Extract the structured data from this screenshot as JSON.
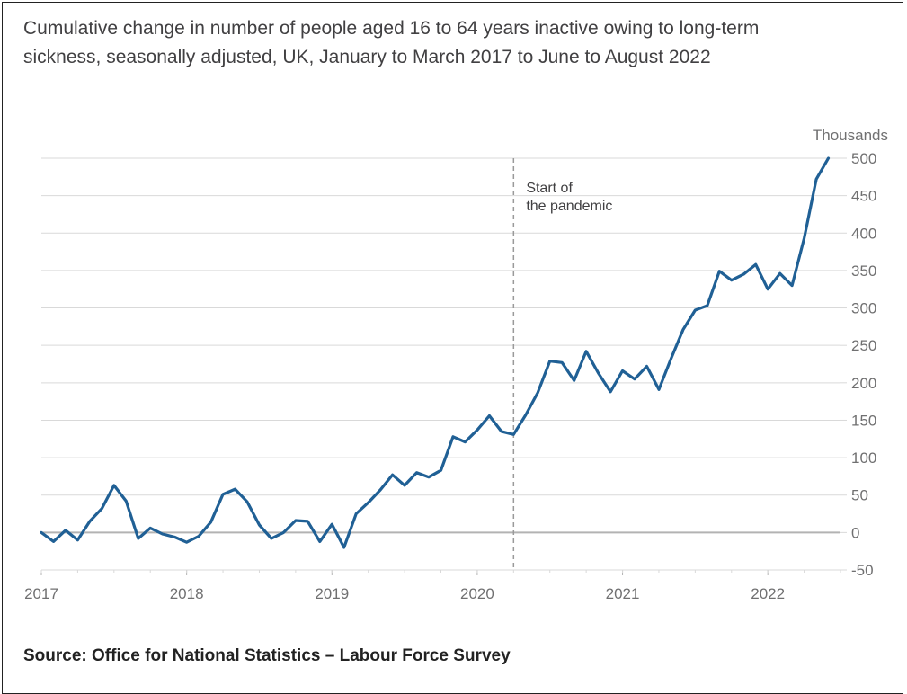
{
  "title": "Cumulative change in number of people aged 16 to 64 years inactive owing to long-term sickness, seasonally adjusted, UK, January to March 2017 to June to August 2022",
  "source": "Source: Office for National Statistics – Labour Force Survey",
  "colors": {
    "line": "#206095",
    "grid": "#d9d9d9",
    "zero_line": "#b3b3b3",
    "reference_line": "#9a9a9a"
  },
  "chart_data": {
    "type": "line",
    "title": "Cumulative change in number of people aged 16 to 64 years inactive owing to long-term sickness, seasonally adjusted, UK, January to March 2017 to June to August 2022",
    "ylabel": "Thousands",
    "xlabel": "",
    "ylim": [
      -50,
      500
    ],
    "yticks": [
      -50,
      0,
      50,
      100,
      150,
      200,
      250,
      300,
      350,
      400,
      450,
      500
    ],
    "xticks": [
      "2017",
      "2018",
      "2019",
      "2020",
      "2021",
      "2022"
    ],
    "grid": true,
    "legend": "none",
    "annotations": [
      {
        "text_lines": [
          "Start of",
          "the pandemic"
        ],
        "x": "2020-04",
        "style": "dashed vertical line"
      }
    ],
    "series": [
      {
        "x": [
          "2017-01",
          "2017-02",
          "2017-03",
          "2017-04",
          "2017-05",
          "2017-06",
          "2017-07",
          "2017-08",
          "2017-09",
          "2017-10",
          "2017-11",
          "2017-12",
          "2018-01",
          "2018-02",
          "2018-03",
          "2018-04",
          "2018-05",
          "2018-06",
          "2018-07",
          "2018-08",
          "2018-09",
          "2018-10",
          "2018-11",
          "2018-12",
          "2019-01",
          "2019-02",
          "2019-03",
          "2019-04",
          "2019-05",
          "2019-06",
          "2019-07",
          "2019-08",
          "2019-09",
          "2019-10",
          "2019-11",
          "2019-12",
          "2020-01",
          "2020-02",
          "2020-03",
          "2020-04",
          "2020-05",
          "2020-06",
          "2020-07",
          "2020-08",
          "2020-09",
          "2020-10",
          "2020-11",
          "2020-12",
          "2021-01",
          "2021-02",
          "2021-03",
          "2021-04",
          "2021-05",
          "2021-06",
          "2021-07",
          "2021-08",
          "2021-09",
          "2021-10",
          "2021-11",
          "2021-12",
          "2022-01",
          "2022-02",
          "2022-03",
          "2022-04",
          "2022-05",
          "2022-06"
        ],
        "values": [
          0,
          -12,
          3,
          -10,
          15,
          32,
          63,
          42,
          -8,
          6,
          -2,
          -6,
          -13,
          -5,
          14,
          51,
          58,
          41,
          10,
          -8,
          0,
          16,
          15,
          -12,
          11,
          -20,
          25,
          40,
          57,
          77,
          63,
          80,
          74,
          83,
          128,
          121,
          137,
          156,
          135,
          131,
          157,
          187,
          229,
          227,
          203,
          242,
          213,
          188,
          216,
          205,
          222,
          191,
          232,
          271,
          297,
          303,
          349,
          337,
          345,
          358,
          325,
          346,
          330,
          393,
          472,
          500
        ]
      }
    ]
  }
}
